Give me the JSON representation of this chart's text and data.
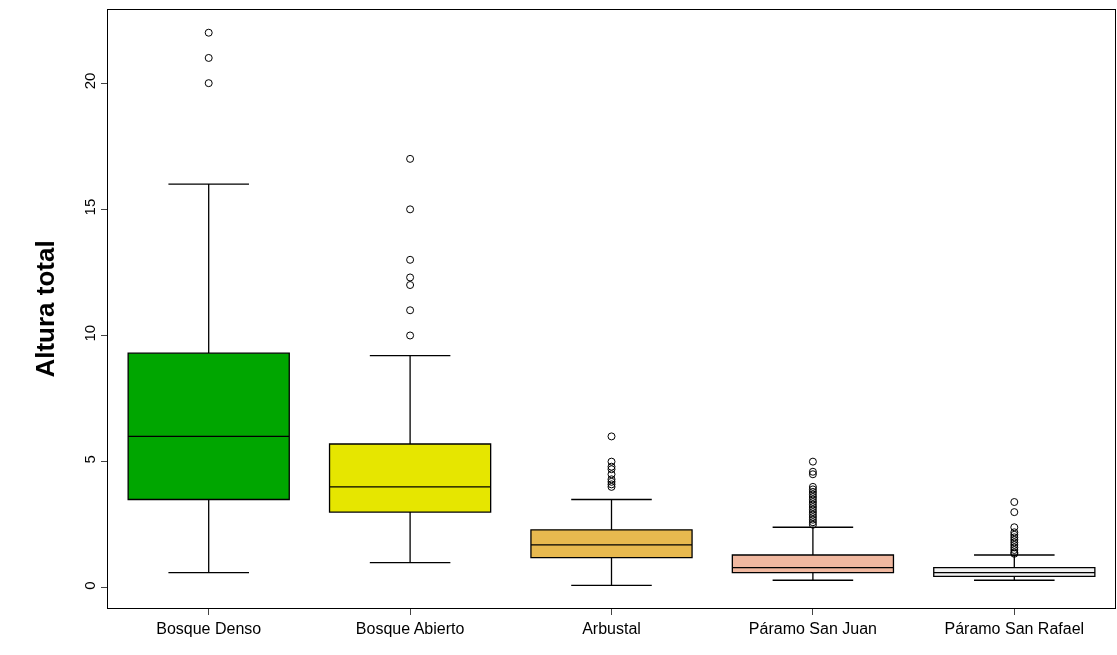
{
  "chart_data": {
    "type": "box",
    "ylabel": "Altura total",
    "categories": [
      "Bosque Denso",
      "Bosque Abierto",
      "Arbustal",
      "Páramo San Juan",
      "Páramo San Rafael"
    ],
    "colors": [
      "#00a600",
      "#e6e600",
      "#e8b94f",
      "#f0b8a0",
      "#f2f2f2"
    ],
    "boxes": [
      {
        "low": 0.6,
        "q1": 3.5,
        "median": 6.0,
        "q3": 9.3,
        "high": 16.0,
        "outliers": [
          20,
          21,
          22
        ]
      },
      {
        "low": 1.0,
        "q1": 3.0,
        "median": 4.0,
        "q3": 5.7,
        "high": 9.2,
        "outliers": [
          10,
          11,
          12,
          12.3,
          13,
          15,
          17
        ]
      },
      {
        "low": 0.1,
        "q1": 1.2,
        "median": 1.7,
        "q3": 2.3,
        "high": 3.5,
        "outliers": [
          4.0,
          4.1,
          4.2,
          4.3,
          4.5,
          4.7,
          4.8,
          5.0,
          6.0
        ]
      },
      {
        "low": 0.3,
        "q1": 0.6,
        "median": 0.8,
        "q3": 1.3,
        "high": 2.4,
        "outliers": [
          2.5,
          2.6,
          2.7,
          2.8,
          2.9,
          3.0,
          3.1,
          3.2,
          3.3,
          3.4,
          3.5,
          3.6,
          3.7,
          3.8,
          3.9,
          4.0,
          4.5,
          4.6,
          5.0
        ]
      },
      {
        "low": 0.3,
        "q1": 0.45,
        "median": 0.6,
        "q3": 0.8,
        "high": 1.3,
        "outliers": [
          1.35,
          1.4,
          1.5,
          1.6,
          1.7,
          1.8,
          1.9,
          2.0,
          2.1,
          2.2,
          2.4,
          3.0,
          3.4
        ]
      }
    ],
    "ylim": [
      -0.8,
      22.9
    ],
    "yticks": [
      0,
      5,
      10,
      15,
      20
    ],
    "marker": "circle"
  }
}
